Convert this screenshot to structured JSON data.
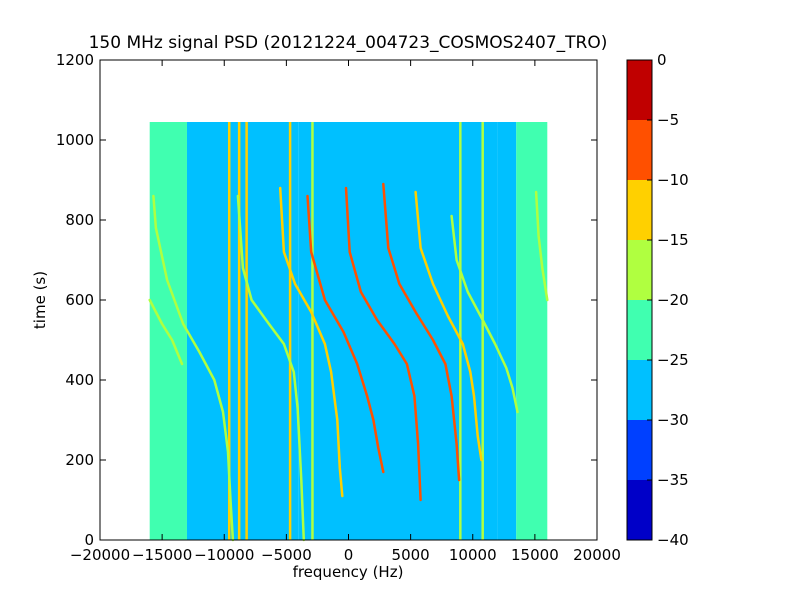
{
  "chart_data": {
    "type": "heatmap",
    "title": "150 MHz signal PSD (20121224_004723_COSMOS2407_TRO)",
    "xlabel": "frequency (Hz)",
    "ylabel": "time (s)",
    "xlim": [
      -20000,
      20000
    ],
    "ylim": [
      0,
      1200
    ],
    "xticks": [
      -20000,
      -15000,
      -10000,
      -5000,
      0,
      5000,
      10000,
      15000,
      20000
    ],
    "xtick_labels": [
      "−20000",
      "−15000",
      "−10000",
      "−5000",
      "0",
      "5000",
      "10000",
      "15000",
      "20000"
    ],
    "yticks": [
      0,
      200,
      400,
      600,
      800,
      1000,
      1200
    ],
    "ytick_labels": [
      "0",
      "200",
      "400",
      "600",
      "800",
      "1000",
      "1200"
    ],
    "data_extent": {
      "x": [
        -16000,
        16000
      ],
      "y": [
        0,
        1045
      ]
    },
    "colorbar": {
      "min": -40,
      "max": 0,
      "ticks": [
        0,
        -5,
        -10,
        -15,
        -20,
        -25,
        -30,
        -35,
        -40
      ],
      "tick_labels": [
        "0",
        "−5",
        "−10",
        "−15",
        "−20",
        "−25",
        "−30",
        "−35",
        "−40"
      ],
      "bands": [
        {
          "range": [
            -40,
            -35
          ],
          "color": "#0000c8"
        },
        {
          "range": [
            -35,
            -30
          ],
          "color": "#0040ff"
        },
        {
          "range": [
            -30,
            -25
          ],
          "color": "#00c0ff"
        },
        {
          "range": [
            -25,
            -20
          ],
          "color": "#40ffb0"
        },
        {
          "range": [
            -20,
            -15
          ],
          "color": "#b0ff40"
        },
        {
          "range": [
            -15,
            -10
          ],
          "color": "#ffd000"
        },
        {
          "range": [
            -10,
            -5
          ],
          "color": "#ff5000"
        },
        {
          "range": [
            -5,
            0
          ],
          "color": "#c00000"
        }
      ]
    },
    "background_regions": [
      {
        "x": [
          -16000,
          -13000
        ],
        "level": -22.5
      },
      {
        "x": [
          -13000,
          -4000
        ],
        "level": -25
      },
      {
        "x": [
          -4000,
          12000
        ],
        "level": -27.5
      },
      {
        "x": [
          12000,
          13500
        ],
        "level": -25
      },
      {
        "x": [
          13500,
          16000
        ],
        "level": -22.5
      }
    ],
    "vertical_lines": [
      {
        "x": -9600,
        "level": -12.5
      },
      {
        "x": -8800,
        "level": -12.5
      },
      {
        "x": -8200,
        "level": -12.5
      },
      {
        "x": -4700,
        "level": -12.5
      },
      {
        "x": -2900,
        "level": -17.5
      },
      {
        "x": 9000,
        "level": -17.5
      },
      {
        "x": 10800,
        "level": -17.5
      }
    ],
    "doppler_tracks": [
      {
        "points": [
          [
            -15700,
            860
          ],
          [
            -15500,
            780
          ],
          [
            -14600,
            650
          ],
          [
            -13300,
            540
          ],
          [
            -12000,
            470
          ],
          [
            -10800,
            400
          ],
          [
            -10100,
            320
          ],
          [
            -9700,
            220
          ],
          [
            -9500,
            100
          ],
          [
            -9300,
            0
          ]
        ],
        "level": -17.5
      },
      {
        "points": [
          [
            -16000,
            600
          ],
          [
            -15000,
            540
          ],
          [
            -14200,
            500
          ],
          [
            -13400,
            440
          ]
        ],
        "level": -17.5
      },
      {
        "points": [
          [
            -8900,
            860
          ],
          [
            -8500,
            680
          ],
          [
            -7800,
            600
          ],
          [
            -6400,
            540
          ],
          [
            -5200,
            490
          ],
          [
            -4400,
            420
          ],
          [
            -4100,
            330
          ],
          [
            -3800,
            150
          ],
          [
            -3600,
            0
          ]
        ],
        "level": -17.5
      },
      {
        "points": [
          [
            -5500,
            880
          ],
          [
            -5200,
            720
          ],
          [
            -4300,
            640
          ],
          [
            -3000,
            570
          ],
          [
            -1900,
            490
          ],
          [
            -1400,
            420
          ],
          [
            -900,
            300
          ],
          [
            -700,
            180
          ],
          [
            -500,
            110
          ]
        ],
        "level": -12.5
      },
      {
        "points": [
          [
            -3300,
            860
          ],
          [
            -3000,
            720
          ],
          [
            -1900,
            600
          ],
          [
            -400,
            520
          ],
          [
            700,
            440
          ],
          [
            1500,
            360
          ],
          [
            2000,
            300
          ],
          [
            2400,
            230
          ],
          [
            2800,
            170
          ]
        ],
        "level": -7.5
      },
      {
        "points": [
          [
            -200,
            880
          ],
          [
            100,
            720
          ],
          [
            1000,
            620
          ],
          [
            2300,
            550
          ],
          [
            3700,
            490
          ],
          [
            4700,
            440
          ],
          [
            5300,
            360
          ],
          [
            5600,
            240
          ],
          [
            5800,
            100
          ]
        ],
        "level": -7.5
      },
      {
        "points": [
          [
            2800,
            890
          ],
          [
            3200,
            730
          ],
          [
            4100,
            640
          ],
          [
            5400,
            570
          ],
          [
            6800,
            500
          ],
          [
            7800,
            440
          ],
          [
            8300,
            360
          ],
          [
            8700,
            240
          ],
          [
            8900,
            150
          ]
        ],
        "level": -7.5
      },
      {
        "points": [
          [
            5400,
            870
          ],
          [
            5800,
            730
          ],
          [
            6800,
            640
          ],
          [
            8000,
            560
          ],
          [
            9200,
            490
          ],
          [
            9800,
            420
          ],
          [
            10100,
            360
          ],
          [
            10400,
            260
          ],
          [
            10700,
            200
          ]
        ],
        "level": -12.5
      },
      {
        "points": [
          [
            8300,
            810
          ],
          [
            8700,
            700
          ],
          [
            9600,
            620
          ],
          [
            10800,
            550
          ],
          [
            11800,
            490
          ],
          [
            12700,
            430
          ],
          [
            13200,
            380
          ],
          [
            13600,
            320
          ]
        ],
        "level": -17.5
      },
      {
        "points": [
          [
            15100,
            870
          ],
          [
            15300,
            760
          ],
          [
            15600,
            680
          ],
          [
            16000,
            600
          ]
        ],
        "level": -17.5
      }
    ]
  }
}
